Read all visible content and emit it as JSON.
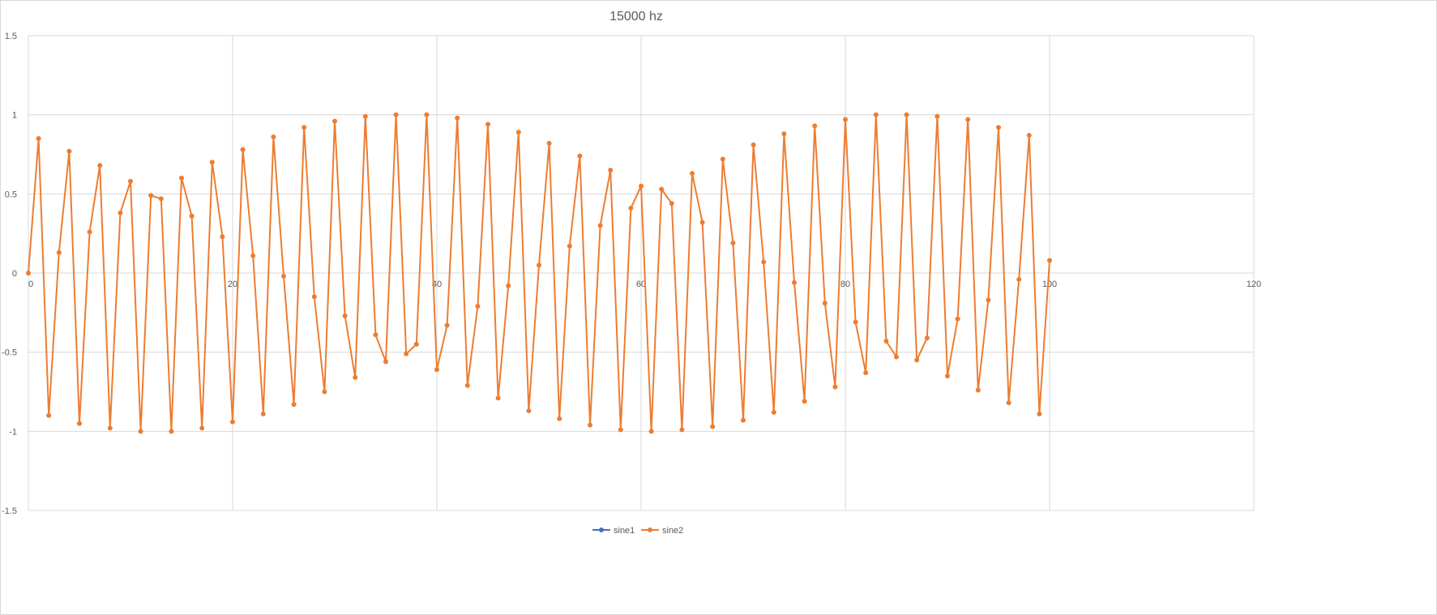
{
  "chart_data": {
    "type": "scatter",
    "title": "15000 hz",
    "xlabel": "",
    "ylabel": "",
    "xlim": [
      0,
      120
    ],
    "ylim": [
      -1.5,
      1.5
    ],
    "x_ticks": [
      "0",
      "20",
      "40",
      "60",
      "80",
      "100",
      "120"
    ],
    "y_ticks": [
      "1.5",
      "1",
      "0.5",
      "0",
      "-0.5",
      "-1",
      "-1.5"
    ],
    "grid": true,
    "legend": "bottom",
    "colors": {
      "sine1": "#4472c4",
      "sine2": "#ed7d31"
    },
    "series": [
      {
        "name": "sine1",
        "x": [],
        "y": []
      },
      {
        "name": "sine2",
        "x": [
          0,
          1,
          2,
          3,
          4,
          5,
          6,
          7,
          8,
          9,
          10,
          11,
          12,
          13,
          14,
          15,
          16,
          17,
          18,
          19,
          20,
          21,
          22,
          23,
          24,
          25,
          26,
          27,
          28,
          29,
          30,
          31,
          32,
          33,
          34,
          35,
          36,
          37,
          38,
          39,
          40,
          41,
          42,
          43,
          44,
          45,
          46,
          47,
          48,
          49,
          50,
          51,
          52,
          53,
          54,
          55,
          56,
          57,
          58,
          59,
          60,
          61,
          62,
          63,
          64,
          65,
          66,
          67,
          68,
          69,
          70,
          71,
          72,
          73,
          74,
          75,
          76,
          77,
          78,
          79,
          80,
          81,
          82,
          83,
          84,
          85,
          86,
          87,
          88,
          89,
          90,
          91,
          92,
          93,
          94,
          95,
          96,
          97,
          98,
          99,
          100
        ],
        "y": [
          0,
          0.85,
          -0.9,
          0.13,
          0.77,
          -0.95,
          0.26,
          0.68,
          -0.98,
          0.38,
          0.58,
          -1.0,
          0.49,
          0.47,
          -1.0,
          0.6,
          0.36,
          -0.98,
          0.7,
          0.23,
          -0.94,
          0.78,
          0.11,
          -0.89,
          0.86,
          -0.02,
          -0.83,
          0.92,
          -0.15,
          -0.75,
          0.96,
          -0.27,
          -0.66,
          0.99,
          -0.39,
          -0.56,
          1.0,
          -0.51,
          -0.45,
          1.0,
          -0.61,
          -0.33,
          0.98,
          -0.71,
          -0.21,
          0.94,
          -0.79,
          -0.08,
          0.89,
          -0.87,
          0.05,
          0.82,
          -0.92,
          0.17,
          0.74,
          -0.96,
          0.3,
          0.65,
          -0.99,
          0.41,
          0.55,
          -1.0,
          0.53,
          0.44,
          -0.99,
          0.63,
          0.32,
          -0.97,
          0.72,
          0.19,
          -0.93,
          0.81,
          0.07,
          -0.88,
          0.88,
          -0.06,
          -0.81,
          0.93,
          -0.19,
          -0.72,
          0.97,
          -0.31,
          -0.63,
          1.0,
          -0.43,
          -0.53,
          1.0,
          -0.55,
          -0.41,
          0.99,
          -0.65,
          -0.29,
          0.97,
          -0.74,
          -0.17,
          0.92,
          -0.82,
          -0.04,
          0.87,
          -0.89,
          0.08
        ]
      }
    ]
  }
}
